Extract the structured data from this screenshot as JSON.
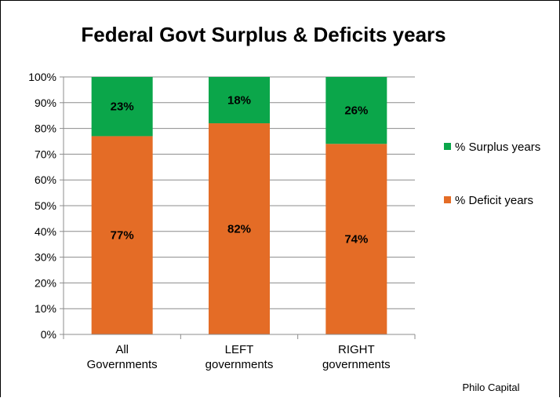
{
  "chart_data": {
    "type": "bar",
    "stacked": true,
    "title": "Federal Govt Surplus & Deficits years",
    "categories": [
      [
        "All",
        "Governments"
      ],
      [
        "LEFT",
        "governments"
      ],
      [
        "RIGHT",
        "governments"
      ]
    ],
    "series": [
      {
        "name": "% Deficit years",
        "values": [
          77,
          82,
          74
        ],
        "labels": [
          "77%",
          "82%",
          "74%"
        ],
        "color": "#E46C26"
      },
      {
        "name": "% Surplus years",
        "values": [
          23,
          18,
          26
        ],
        "labels": [
          "23%",
          "18%",
          "26%"
        ],
        "color": "#0BA64A"
      }
    ],
    "ylim": [
      0,
      100
    ],
    "yticks": [
      "0%",
      "10%",
      "20%",
      "30%",
      "40%",
      "50%",
      "60%",
      "70%",
      "80%",
      "90%",
      "100%"
    ],
    "grid": true,
    "legend_position": "right",
    "legend_order": [
      "% Surplus years",
      "% Deficit years"
    ]
  },
  "credit": "Philo Capital"
}
